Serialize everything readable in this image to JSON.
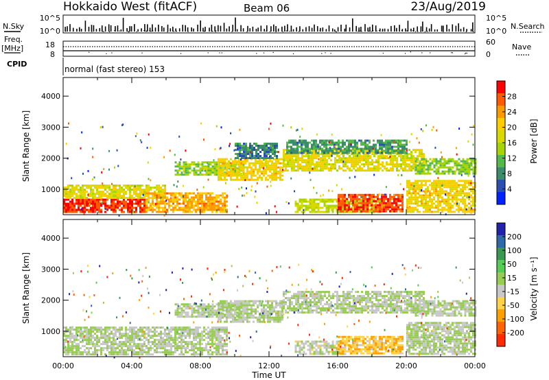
{
  "header": {
    "title": "Hokkaido West (fitACF)",
    "beam": "Beam 06",
    "date": "23/Aug/2019"
  },
  "nsky_panel": {
    "left_label": "N.Sky",
    "right_label": "N.Search",
    "left_ticks": [
      "10^5",
      "10^0"
    ],
    "right_ticks": [
      "10^5",
      "10^0"
    ]
  },
  "freq_panel": {
    "left_label_line1": "Freq.",
    "left_label_line2": "[MHz]",
    "right_label": "Nave",
    "left_ticks": [
      "18",
      "8"
    ],
    "right_ticks": [
      "60",
      "0"
    ]
  },
  "cpid_panel": {
    "label": "CPID",
    "text": "normal (fast stereo) 153"
  },
  "power_panel": {
    "ylabel": "Slant Range [km]",
    "yticks": [
      "4000",
      "3000",
      "2000",
      "1000"
    ],
    "colorbar_label": "Power [dB]",
    "colorbar_ticks": [
      "28",
      "24",
      "20",
      "16",
      "12",
      "8",
      "4"
    ],
    "colors": [
      "#ff0000",
      "#ff5a00",
      "#ff9900",
      "#ffcc00",
      "#d9d900",
      "#a8d400",
      "#55b84a",
      "#3a8c6a",
      "#2b4fb0",
      "#0022ff"
    ]
  },
  "velocity_panel": {
    "ylabel": "Slant Range [km]",
    "yticks": [
      "4000",
      "3000",
      "2000",
      "1000"
    ],
    "colorbar_label": "Velocity [m s⁻¹]",
    "colorbar_ticks": [
      "200",
      "100",
      "50",
      "15",
      "-15",
      "-50",
      "-100",
      "-200"
    ],
    "colors": [
      "#2222aa",
      "#2f6aa8",
      "#3a9950",
      "#55cc55",
      "#99cc55",
      "#c8c8c8",
      "#ffd24a",
      "#ffa000",
      "#ff6400",
      "#ff2a00"
    ]
  },
  "x_axis": {
    "ticks": [
      "00:00",
      "04:00",
      "08:00",
      "12:00",
      "16:00",
      "20:00",
      "00:00"
    ],
    "label": "Time UT"
  },
  "chart_data": [
    {
      "type": "heatmap",
      "title": "Power",
      "xlabel": "Time UT",
      "ylabel": "Slant Range [km]",
      "xlim": [
        0,
        24
      ],
      "ylim": [
        180,
        4600
      ],
      "colorbar": {
        "label": "Power [dB]",
        "range": [
          0,
          32
        ]
      },
      "regions": [
        {
          "t0": 0.0,
          "t1": 4.8,
          "r0": 250,
          "r1": 700,
          "value": 29
        },
        {
          "t0": 0.0,
          "t1": 6.0,
          "r0": 700,
          "r1": 1150,
          "value": 18
        },
        {
          "t0": 4.8,
          "t1": 9.5,
          "r0": 300,
          "r1": 900,
          "value": 23
        },
        {
          "t0": 6.5,
          "t1": 10.5,
          "r0": 1500,
          "r1": 1900,
          "value": 14
        },
        {
          "t0": 9.0,
          "t1": 12.8,
          "r0": 1300,
          "r1": 2000,
          "value": 20
        },
        {
          "t0": 10.0,
          "t1": 12.5,
          "r0": 2000,
          "r1": 2500,
          "value": 8
        },
        {
          "t0": 12.8,
          "t1": 21.0,
          "r0": 1600,
          "r1": 2300,
          "value": 18
        },
        {
          "t0": 13.0,
          "t1": 20.0,
          "r0": 2200,
          "r1": 2600,
          "value": 9
        },
        {
          "t0": 13.5,
          "t1": 18.5,
          "r0": 250,
          "r1": 700,
          "value": 16
        },
        {
          "t0": 16.0,
          "t1": 19.8,
          "r0": 300,
          "r1": 850,
          "value": 28
        },
        {
          "t0": 20.0,
          "t1": 24.0,
          "r0": 250,
          "r1": 1300,
          "value": 20
        },
        {
          "t0": 20.5,
          "t1": 24.0,
          "r0": 1500,
          "r1": 2000,
          "value": 13
        }
      ]
    },
    {
      "type": "heatmap",
      "title": "Velocity",
      "xlabel": "Time UT",
      "ylabel": "Slant Range [km]",
      "xlim": [
        0,
        24
      ],
      "ylim": [
        180,
        4600
      ],
      "colorbar": {
        "label": "Velocity [m s⁻¹]",
        "range": [
          -200,
          200
        ]
      },
      "regions": [
        {
          "t0": 0.0,
          "t1": 9.5,
          "r0": 250,
          "r1": 1150,
          "value": 0
        },
        {
          "t0": 6.5,
          "t1": 10.5,
          "r0": 1500,
          "r1": 1900,
          "value": 0
        },
        {
          "t0": 9.0,
          "t1": 12.8,
          "r0": 1300,
          "r1": 2000,
          "value": 0
        },
        {
          "t0": 12.8,
          "t1": 21.0,
          "r0": 1600,
          "r1": 2300,
          "value": 0
        },
        {
          "t0": 13.5,
          "t1": 16.5,
          "r0": 250,
          "r1": 700,
          "value": -10
        },
        {
          "t0": 16.0,
          "t1": 19.8,
          "r0": 300,
          "r1": 850,
          "value": -70
        },
        {
          "t0": 20.0,
          "t1": 24.0,
          "r0": 250,
          "r1": 1300,
          "value": 0
        },
        {
          "t0": 20.5,
          "t1": 24.0,
          "r0": 1500,
          "r1": 2000,
          "value": 0
        }
      ]
    }
  ]
}
